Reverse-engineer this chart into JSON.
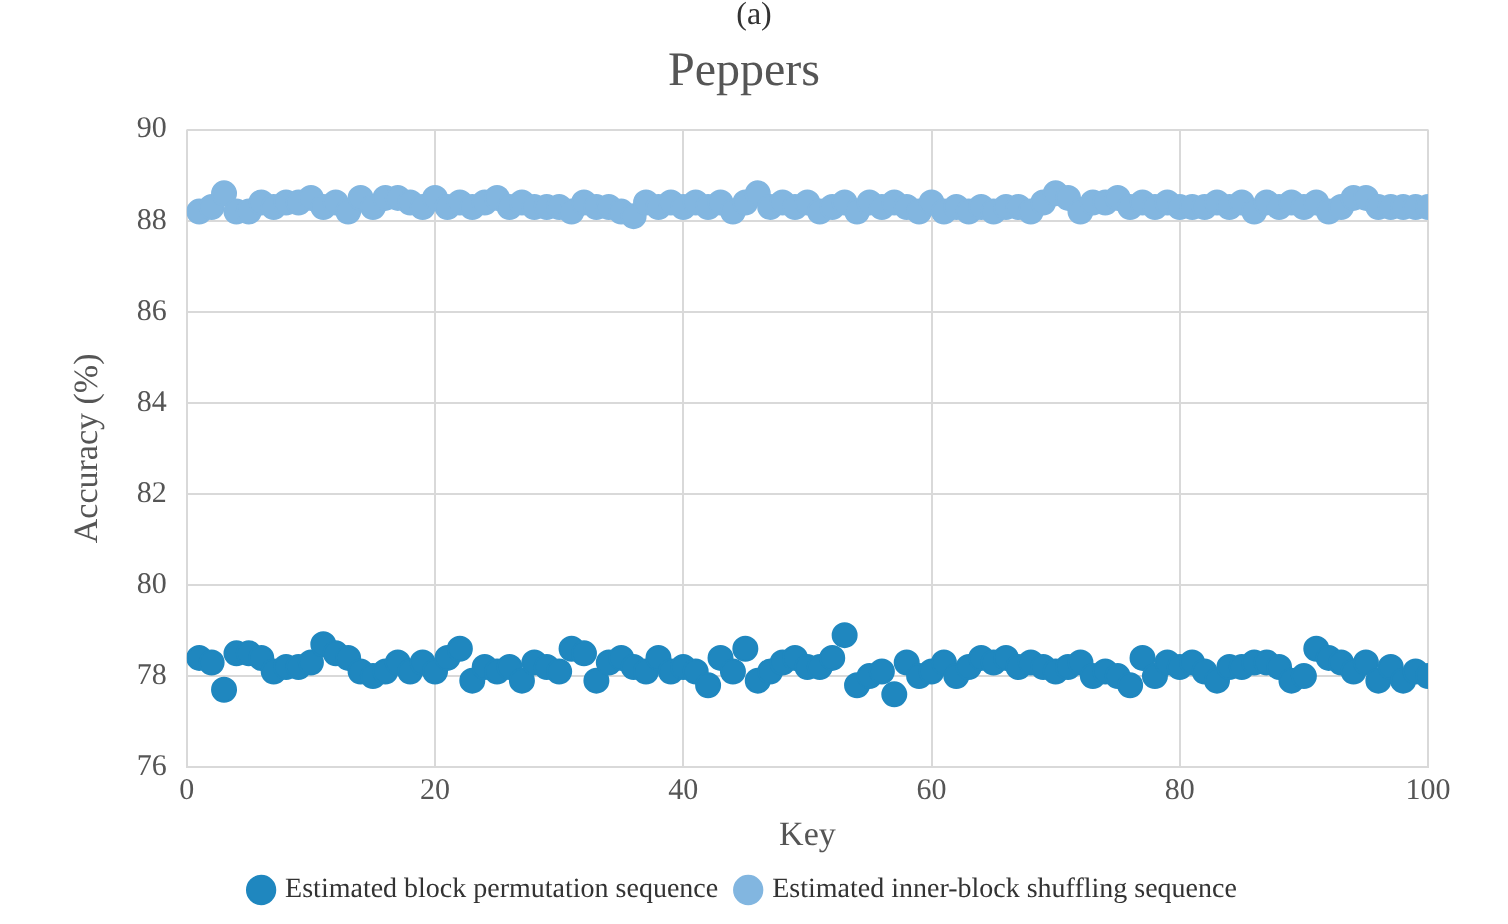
{
  "chart_data": {
    "type": "scatter",
    "title": "Peppers",
    "xlabel": "Key",
    "ylabel": "Accuracy (%)",
    "annotations": [
      "(a)"
    ],
    "x": [
      1,
      2,
      3,
      4,
      5,
      6,
      7,
      8,
      9,
      10,
      11,
      12,
      13,
      14,
      15,
      16,
      17,
      18,
      19,
      20,
      21,
      22,
      23,
      24,
      25,
      26,
      27,
      28,
      29,
      30,
      31,
      32,
      33,
      34,
      35,
      36,
      37,
      38,
      39,
      40,
      41,
      42,
      43,
      44,
      45,
      46,
      47,
      48,
      49,
      50,
      51,
      52,
      53,
      54,
      55,
      56,
      57,
      58,
      59,
      60,
      61,
      62,
      63,
      64,
      65,
      66,
      67,
      68,
      69,
      70,
      71,
      72,
      73,
      74,
      75,
      76,
      77,
      78,
      79,
      80,
      81,
      82,
      83,
      84,
      85,
      86,
      87,
      88,
      89,
      90,
      91,
      92,
      93,
      94,
      95,
      96,
      97,
      98,
      99,
      100
    ],
    "series": [
      {
        "name": "Estimated block permutation sequence",
        "color": "#1f87bf",
        "values": [
          78.4,
          78.3,
          77.7,
          78.5,
          78.5,
          78.4,
          78.1,
          78.2,
          78.2,
          78.3,
          78.7,
          78.5,
          78.4,
          78.1,
          78.0,
          78.1,
          78.3,
          78.1,
          78.3,
          78.1,
          78.4,
          78.6,
          77.9,
          78.2,
          78.1,
          78.2,
          77.9,
          78.3,
          78.2,
          78.1,
          78.6,
          78.5,
          77.9,
          78.3,
          78.4,
          78.2,
          78.1,
          78.4,
          78.1,
          78.2,
          78.1,
          77.8,
          78.4,
          78.1,
          78.6,
          77.9,
          78.1,
          78.3,
          78.4,
          78.2,
          78.2,
          78.4,
          78.9,
          77.8,
          78.0,
          78.1,
          77.6,
          78.3,
          78.0,
          78.1,
          78.3,
          78.0,
          78.2,
          78.4,
          78.3,
          78.4,
          78.2,
          78.3,
          78.2,
          78.1,
          78.2,
          78.3,
          78.0,
          78.1,
          78.0,
          77.8,
          78.4,
          78.0,
          78.3,
          78.2,
          78.3,
          78.1,
          77.9,
          78.2,
          78.2,
          78.3,
          78.3,
          78.2,
          77.9,
          78.0,
          78.6,
          78.4,
          78.3,
          78.1,
          78.3,
          77.9,
          78.2,
          77.9,
          78.1,
          78.0
        ]
      },
      {
        "name": "Estimated inner-block shuffling sequence",
        "color": "#82b6e0",
        "values": [
          88.2,
          88.3,
          88.6,
          88.2,
          88.2,
          88.4,
          88.3,
          88.4,
          88.4,
          88.5,
          88.3,
          88.4,
          88.2,
          88.5,
          88.3,
          88.5,
          88.5,
          88.4,
          88.3,
          88.5,
          88.3,
          88.4,
          88.3,
          88.4,
          88.5,
          88.3,
          88.4,
          88.3,
          88.3,
          88.3,
          88.2,
          88.4,
          88.3,
          88.3,
          88.2,
          88.1,
          88.4,
          88.3,
          88.4,
          88.3,
          88.4,
          88.3,
          88.4,
          88.2,
          88.4,
          88.6,
          88.3,
          88.4,
          88.3,
          88.4,
          88.2,
          88.3,
          88.4,
          88.2,
          88.4,
          88.3,
          88.4,
          88.3,
          88.2,
          88.4,
          88.2,
          88.3,
          88.2,
          88.3,
          88.2,
          88.3,
          88.3,
          88.2,
          88.4,
          88.6,
          88.5,
          88.2,
          88.4,
          88.4,
          88.5,
          88.3,
          88.4,
          88.3,
          88.4,
          88.3,
          88.3,
          88.3,
          88.4,
          88.3,
          88.4,
          88.2,
          88.4,
          88.3,
          88.4,
          88.3,
          88.4,
          88.2,
          88.3,
          88.5,
          88.5,
          88.3,
          88.3,
          88.3,
          88.3,
          88.3
        ]
      }
    ],
    "xlim": [
      0,
      100
    ],
    "xticks": [
      0,
      20,
      40,
      60,
      80,
      100
    ],
    "ylim": [
      76,
      90
    ],
    "yticks": [
      76,
      78,
      80,
      82,
      84,
      86,
      88,
      90
    ],
    "grid": true,
    "legend": "bottom",
    "marker": "circle"
  }
}
